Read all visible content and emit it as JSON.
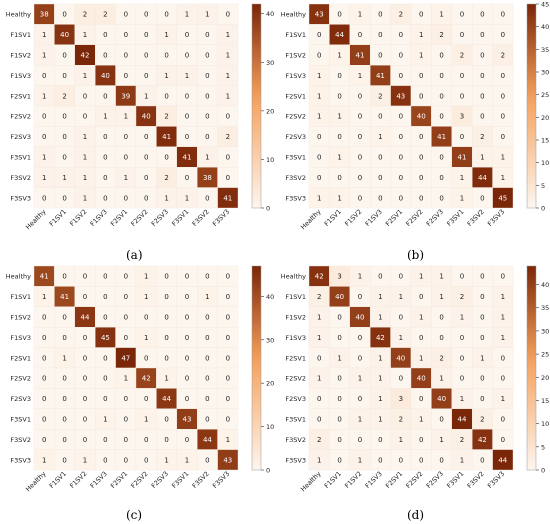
{
  "color_scale": {
    "low": "#fdf6ef",
    "mid": "#f5a05a",
    "high": "#7a2608"
  },
  "chart_data": [
    {
      "type": "heatmap",
      "caption": "(a)",
      "row_labels": [
        "Healthy",
        "F1SV1",
        "F1SV2",
        "F1SV3",
        "F2SV1",
        "F2SV2",
        "F2SV3",
        "F3SV1",
        "F3SV2",
        "F3SV3"
      ],
      "col_labels": [
        "Healthy",
        "F1SV1",
        "F1SV2",
        "F1SV3",
        "F2SV1",
        "F2SV2",
        "F2SV3",
        "F3SV1",
        "F3SV2",
        "F3SV3"
      ],
      "values": [
        [
          38,
          0,
          2,
          2,
          0,
          0,
          0,
          1,
          1,
          0
        ],
        [
          1,
          40,
          1,
          0,
          0,
          0,
          1,
          0,
          0,
          1
        ],
        [
          1,
          0,
          42,
          0,
          0,
          0,
          0,
          0,
          0,
          1
        ],
        [
          0,
          0,
          1,
          40,
          0,
          0,
          1,
          1,
          0,
          1
        ],
        [
          1,
          2,
          0,
          0,
          39,
          1,
          0,
          0,
          0,
          1
        ],
        [
          0,
          0,
          0,
          1,
          1,
          40,
          2,
          0,
          0,
          0
        ],
        [
          0,
          0,
          1,
          0,
          0,
          0,
          41,
          0,
          0,
          2
        ],
        [
          1,
          0,
          1,
          0,
          0,
          0,
          0,
          41,
          1,
          0
        ],
        [
          1,
          1,
          1,
          0,
          1,
          0,
          2,
          0,
          38,
          0
        ],
        [
          0,
          0,
          1,
          0,
          0,
          0,
          1,
          1,
          0,
          41
        ]
      ],
      "colorbar_ticks": [
        0,
        10,
        20,
        30,
        40
      ],
      "vmax": 42
    },
    {
      "type": "heatmap",
      "caption": "(b)",
      "row_labels": [
        "Healthy",
        "F1SV1",
        "F1SV2",
        "F1SV3",
        "F2SV1",
        "F2SV2",
        "F2SV3",
        "F3SV1",
        "F3SV2",
        "F3SV3"
      ],
      "col_labels": [
        "Healthy",
        "F1SV1",
        "F1SV2",
        "F1SV3",
        "F2SV1",
        "F2SV2",
        "F2SV3",
        "F3SV1",
        "F3SV2",
        "F3SV3"
      ],
      "values": [
        [
          43,
          0,
          1,
          0,
          2,
          0,
          1,
          0,
          0,
          0
        ],
        [
          0,
          44,
          0,
          0,
          0,
          1,
          2,
          0,
          0,
          0
        ],
        [
          0,
          1,
          41,
          0,
          0,
          1,
          0,
          2,
          0,
          2
        ],
        [
          1,
          0,
          1,
          41,
          0,
          0,
          0,
          0,
          0,
          0
        ],
        [
          1,
          0,
          0,
          2,
          43,
          0,
          0,
          0,
          0,
          0
        ],
        [
          1,
          1,
          0,
          0,
          0,
          40,
          0,
          3,
          0,
          0
        ],
        [
          0,
          0,
          0,
          1,
          0,
          0,
          41,
          0,
          2,
          0
        ],
        [
          0,
          1,
          0,
          0,
          0,
          0,
          0,
          41,
          1,
          1
        ],
        [
          0,
          0,
          0,
          0,
          0,
          0,
          0,
          1,
          44,
          1
        ],
        [
          1,
          1,
          0,
          0,
          0,
          0,
          0,
          1,
          0,
          45
        ]
      ],
      "colorbar_ticks": [
        0,
        5,
        10,
        15,
        20,
        25,
        30,
        35,
        40,
        45
      ],
      "vmax": 45
    },
    {
      "type": "heatmap",
      "caption": "(c)",
      "row_labels": [
        "Healthy",
        "F1SV1",
        "F1SV2",
        "F1SV3",
        "F2SV1",
        "F2SV2",
        "F2SV3",
        "F3SV1",
        "F3SV2",
        "F3SV3"
      ],
      "col_labels": [
        "Healthy",
        "F1SV1",
        "F1SV2",
        "F1SV3",
        "F2SV1",
        "F2SV2",
        "F2SV3",
        "F3SV1",
        "F3SV2",
        "F3SV3"
      ],
      "values": [
        [
          41,
          0,
          0,
          0,
          0,
          1,
          0,
          0,
          0,
          0
        ],
        [
          1,
          41,
          0,
          0,
          0,
          1,
          0,
          0,
          1,
          0
        ],
        [
          0,
          0,
          44,
          0,
          0,
          0,
          0,
          0,
          0,
          0
        ],
        [
          0,
          0,
          0,
          45,
          0,
          1,
          0,
          0,
          0,
          0
        ],
        [
          0,
          1,
          0,
          0,
          47,
          0,
          0,
          0,
          0,
          0
        ],
        [
          0,
          0,
          0,
          0,
          1,
          42,
          1,
          0,
          0,
          0
        ],
        [
          0,
          0,
          0,
          0,
          0,
          0,
          44,
          0,
          0,
          0
        ],
        [
          0,
          0,
          0,
          1,
          0,
          1,
          0,
          43,
          0,
          0
        ],
        [
          0,
          0,
          0,
          0,
          0,
          0,
          0,
          0,
          44,
          1
        ],
        [
          1,
          0,
          1,
          0,
          0,
          0,
          1,
          1,
          0,
          43
        ]
      ],
      "colorbar_ticks": [
        0,
        10,
        20,
        30,
        40
      ],
      "vmax": 47
    },
    {
      "type": "heatmap",
      "caption": "(d)",
      "row_labels": [
        "Healthy",
        "F1SV1",
        "F1SV2",
        "F1SV3",
        "F2SV1",
        "F2SV2",
        "F2SV3",
        "F3SV1",
        "F3SV2",
        "F3SV3"
      ],
      "col_labels": [
        "Healthy",
        "F1SV1",
        "F1SV2",
        "F1SV3",
        "F2SV1",
        "F2SV2",
        "F2SV3",
        "F3SV1",
        "F3SV2",
        "F3SV3"
      ],
      "values": [
        [
          42,
          3,
          1,
          0,
          0,
          1,
          1,
          0,
          0,
          0
        ],
        [
          2,
          40,
          0,
          1,
          1,
          0,
          1,
          2,
          0,
          1
        ],
        [
          1,
          0,
          40,
          1,
          0,
          1,
          0,
          1,
          0,
          1
        ],
        [
          1,
          0,
          0,
          42,
          1,
          0,
          0,
          0,
          0,
          1
        ],
        [
          0,
          1,
          0,
          1,
          40,
          1,
          2,
          0,
          1,
          0
        ],
        [
          1,
          0,
          1,
          1,
          0,
          40,
          1,
          0,
          0,
          0
        ],
        [
          0,
          0,
          0,
          1,
          3,
          0,
          40,
          1,
          0,
          1
        ],
        [
          0,
          0,
          1,
          1,
          2,
          1,
          0,
          44,
          2,
          0
        ],
        [
          2,
          0,
          0,
          0,
          1,
          0,
          1,
          2,
          42,
          0
        ],
        [
          1,
          0,
          1,
          0,
          0,
          0,
          0,
          1,
          0,
          44
        ]
      ],
      "colorbar_ticks": [
        0,
        5,
        10,
        15,
        20,
        25,
        30,
        35,
        40
      ],
      "vmax": 44
    }
  ]
}
